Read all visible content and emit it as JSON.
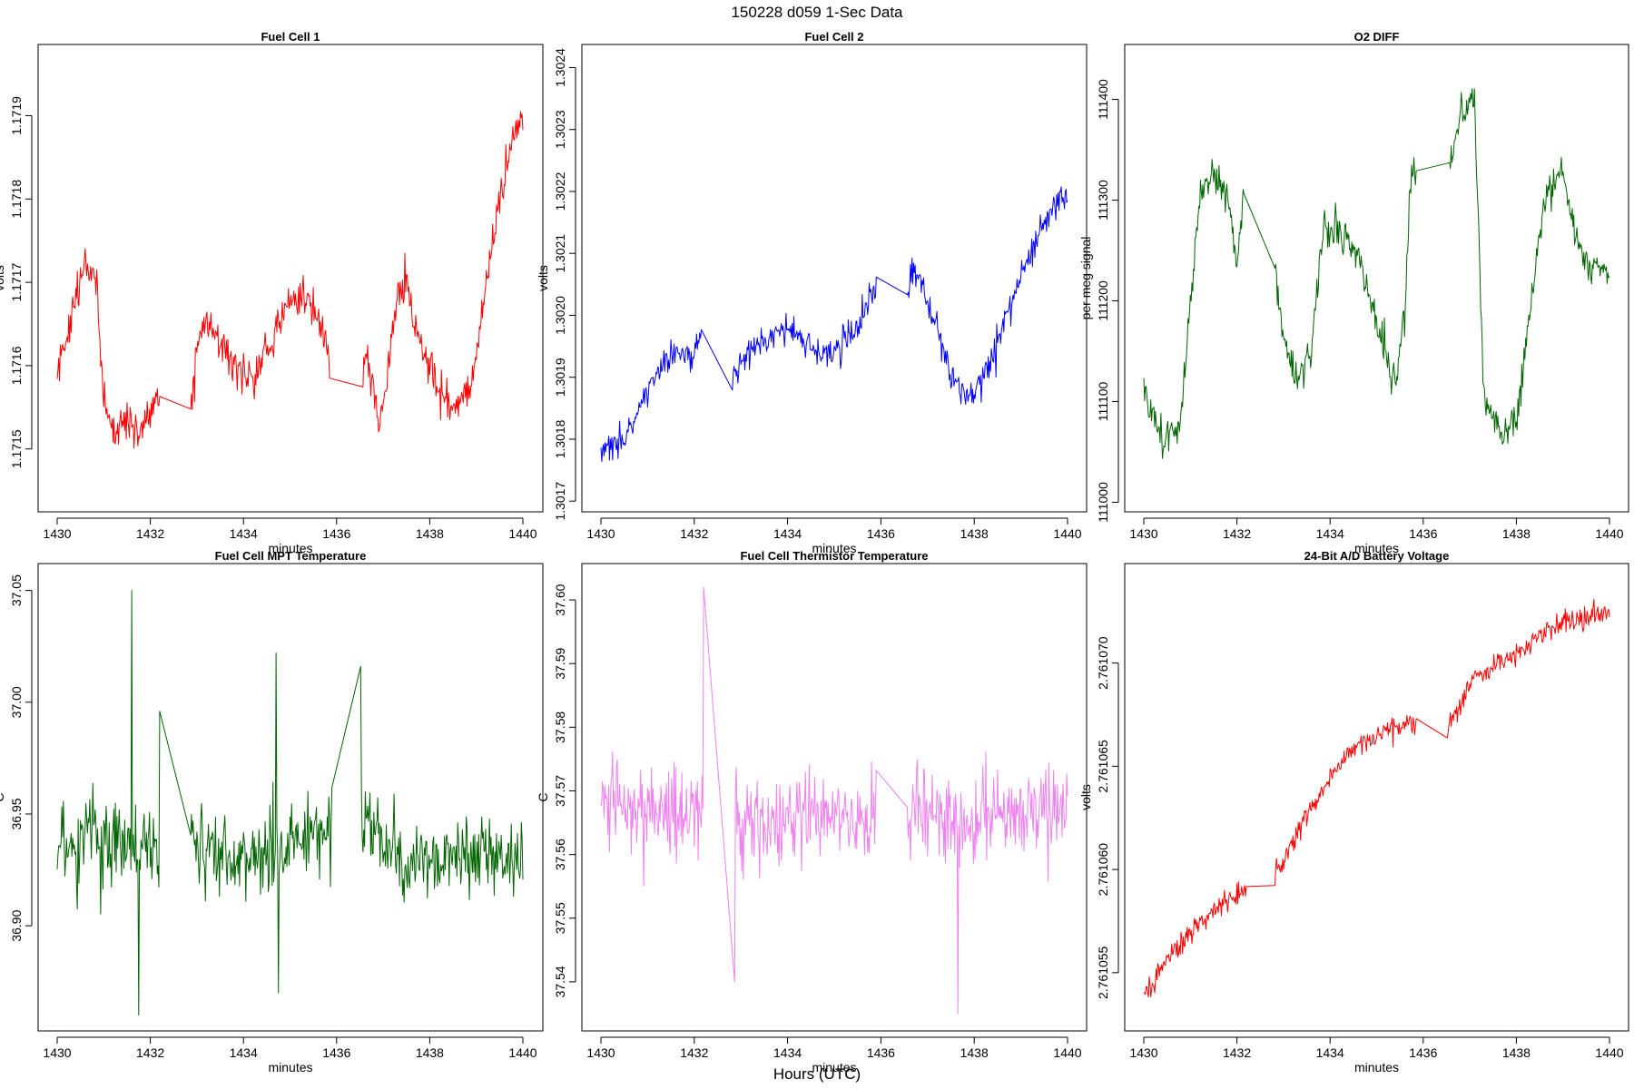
{
  "figure": {
    "title": "150228    d059    1-Sec Data",
    "xlabel": "Hours (UTC)"
  },
  "chart_data": [
    {
      "type": "line",
      "title": "Fuel Cell 1",
      "xlabel": "minutes",
      "ylabel": "volts",
      "color": "#ff0000",
      "xlim": [
        1430,
        1440
      ],
      "ylim": [
        1.17143,
        1.17198
      ],
      "xticks": [
        1430,
        1432,
        1434,
        1436,
        1438,
        1440
      ],
      "yticks": [
        1.1715,
        1.1716,
        1.1717,
        1.1718,
        1.1719
      ],
      "yticklabels": [
        "1.1715",
        "1.1716",
        "1.1717",
        "1.1718",
        "1.1719"
      ],
      "noise": 3.2e-05,
      "gaps": [
        [
          1432.2,
          1432.85
        ],
        [
          1435.85,
          1436.55
        ]
      ],
      "profile": [
        [
          1430,
          1.17159
        ],
        [
          1430.3,
          1.17166
        ],
        [
          1430.6,
          1.17172
        ],
        [
          1430.85,
          1.1717
        ],
        [
          1430.95,
          1.17158
        ],
        [
          1431.2,
          1.17152
        ],
        [
          1431.5,
          1.17154
        ],
        [
          1431.8,
          1.17152
        ],
        [
          1432.1,
          1.17156
        ],
        [
          1432.2,
          1.17155
        ],
        [
          1432.85,
          1.17154
        ],
        [
          1433.0,
          1.17162
        ],
        [
          1433.2,
          1.17166
        ],
        [
          1433.5,
          1.17162
        ],
        [
          1433.8,
          1.1716
        ],
        [
          1434.2,
          1.17158
        ],
        [
          1434.6,
          1.17163
        ],
        [
          1435.0,
          1.17168
        ],
        [
          1435.5,
          1.17168
        ],
        [
          1435.8,
          1.17162
        ],
        [
          1435.85,
          1.1716
        ],
        [
          1436.55,
          1.17159
        ],
        [
          1436.65,
          1.17162
        ],
        [
          1436.9,
          1.17152
        ],
        [
          1437.1,
          1.1716
        ],
        [
          1437.3,
          1.17168
        ],
        [
          1437.5,
          1.1717
        ],
        [
          1437.8,
          1.17163
        ],
        [
          1438.1,
          1.17158
        ],
        [
          1438.5,
          1.17155
        ],
        [
          1438.9,
          1.17157
        ],
        [
          1439.2,
          1.1717
        ],
        [
          1439.5,
          1.1718
        ],
        [
          1439.8,
          1.17188
        ],
        [
          1440.0,
          1.1719
        ]
      ]
    },
    {
      "type": "line",
      "title": "Fuel Cell 2",
      "xlabel": "minutes",
      "ylabel": "volts",
      "color": "#0000ff",
      "xlim": [
        1430,
        1440
      ],
      "ylim": [
        1.30169,
        1.30243
      ],
      "xticks": [
        1430,
        1432,
        1434,
        1436,
        1438,
        1440
      ],
      "yticks": [
        1.3017,
        1.3018,
        1.3019,
        1.302,
        1.3021,
        1.3022,
        1.3023,
        1.3024
      ],
      "yticklabels": [
        "1.3017",
        "1.3018",
        "1.3019",
        "1.3020",
        "1.3021",
        "1.3022",
        "1.3023",
        "1.3024"
      ],
      "noise": 3.6e-05,
      "gaps": [
        [
          1432.15,
          1432.8
        ],
        [
          1435.9,
          1436.55
        ]
      ],
      "profile": [
        [
          1430,
          1.30178
        ],
        [
          1430.5,
          1.3018
        ],
        [
          1431.0,
          1.30188
        ],
        [
          1431.5,
          1.30194
        ],
        [
          1432.0,
          1.30194
        ],
        [
          1432.15,
          1.30197
        ],
        [
          1432.8,
          1.30189
        ],
        [
          1433.0,
          1.30192
        ],
        [
          1433.5,
          1.30196
        ],
        [
          1434.0,
          1.30198
        ],
        [
          1434.5,
          1.30194
        ],
        [
          1435.0,
          1.30194
        ],
        [
          1435.5,
          1.30198
        ],
        [
          1435.9,
          1.30204
        ],
        [
          1436.55,
          1.30203
        ],
        [
          1436.7,
          1.30208
        ],
        [
          1437.0,
          1.30202
        ],
        [
          1437.5,
          1.3019
        ],
        [
          1438.0,
          1.30186
        ],
        [
          1438.3,
          1.30192
        ],
        [
          1438.7,
          1.302
        ],
        [
          1439.2,
          1.3021
        ],
        [
          1439.7,
          1.30218
        ],
        [
          1440.0,
          1.3022
        ]
      ]
    },
    {
      "type": "line",
      "title": "O2 DIFF",
      "xlabel": "minutes",
      "ylabel": "per meg signal",
      "color": "#006400",
      "xlim": [
        1430,
        1440
      ],
      "ylim": [
        110995,
        111450
      ],
      "xticks": [
        1430,
        1432,
        1434,
        1436,
        1438,
        1440
      ],
      "yticks": [
        111000,
        111100,
        111200,
        111300,
        111400
      ],
      "yticklabels": [
        "111000",
        "111100",
        "111200",
        "111300",
        "111400"
      ],
      "noise": 24,
      "gaps": [
        [
          1432.15,
          1432.8
        ],
        [
          1435.85,
          1436.55
        ]
      ],
      "profile": [
        [
          1430,
          111110
        ],
        [
          1430.4,
          111060
        ],
        [
          1430.8,
          111080
        ],
        [
          1431.0,
          111200
        ],
        [
          1431.2,
          111300
        ],
        [
          1431.5,
          111330
        ],
        [
          1431.8,
          111300
        ],
        [
          1432.0,
          111240
        ],
        [
          1432.15,
          111310
        ],
        [
          1432.8,
          111240
        ],
        [
          1433.0,
          111160
        ],
        [
          1433.3,
          111120
        ],
        [
          1433.6,
          111150
        ],
        [
          1433.85,
          111270
        ],
        [
          1434.2,
          111270
        ],
        [
          1434.6,
          111240
        ],
        [
          1435.0,
          111180
        ],
        [
          1435.4,
          111120
        ],
        [
          1435.6,
          111190
        ],
        [
          1435.75,
          111330
        ],
        [
          1435.85,
          111330
        ],
        [
          1436.55,
          111325
        ],
        [
          1436.8,
          111390
        ],
        [
          1437.1,
          111400
        ],
        [
          1437.3,
          111100
        ],
        [
          1437.7,
          111070
        ],
        [
          1438.0,
          111080
        ],
        [
          1438.3,
          111190
        ],
        [
          1438.6,
          111300
        ],
        [
          1439.0,
          111330
        ],
        [
          1439.3,
          111260
        ],
        [
          1439.6,
          111230
        ],
        [
          1440.0,
          111225
        ]
      ]
    },
    {
      "type": "line",
      "title": "Fuel Cell MPT Temperature",
      "xlabel": "minutes",
      "ylabel": "C",
      "color": "#006400",
      "xlim": [
        1430,
        1440
      ],
      "ylim": [
        36.855,
        37.06
      ],
      "xticks": [
        1430,
        1432,
        1434,
        1436,
        1438,
        1440
      ],
      "yticks": [
        36.9,
        36.95,
        37.0,
        37.05
      ],
      "yticklabels": [
        "36.90",
        "36.95",
        "37.00",
        "37.05"
      ],
      "noise": 0.024,
      "gaps": [
        [
          1432.2,
          1432.85
        ],
        [
          1435.9,
          1436.5
        ]
      ],
      "profile": [
        [
          1430,
          36.935
        ],
        [
          1431.0,
          36.94
        ],
        [
          1432.2,
          36.935
        ],
        [
          1432.85,
          36.935
        ],
        [
          1434.0,
          36.93
        ],
        [
          1435.0,
          36.935
        ],
        [
          1435.9,
          36.945
        ],
        [
          1436.5,
          36.945
        ],
        [
          1437.5,
          36.93
        ],
        [
          1438.5,
          36.93
        ],
        [
          1440.0,
          36.93
        ]
      ],
      "spikes": [
        [
          1431.6,
          37.05
        ],
        [
          1431.75,
          36.86
        ],
        [
          1432.2,
          36.996
        ],
        [
          1434.7,
          37.022
        ],
        [
          1434.75,
          36.87
        ],
        [
          1436.5,
          37.016
        ]
      ]
    },
    {
      "type": "line",
      "title": "Fuel Cell Thermistor Temperature",
      "xlabel": "minutes",
      "ylabel": "C",
      "color": "#ee82ee",
      "xlim": [
        1430,
        1440
      ],
      "ylim": [
        37.533,
        37.605
      ],
      "xticks": [
        1430,
        1432,
        1434,
        1436,
        1438,
        1440
      ],
      "yticks": [
        37.54,
        37.55,
        37.56,
        37.57,
        37.58,
        37.59,
        37.6
      ],
      "yticklabels": [
        "37.54",
        "37.55",
        "37.56",
        "37.57",
        "37.58",
        "37.59",
        "37.60"
      ],
      "noise": 0.0095,
      "gaps": [
        [
          1432.2,
          1432.85
        ],
        [
          1435.9,
          1436.55
        ]
      ],
      "profile": [
        [
          1430,
          37.568
        ],
        [
          1432.2,
          37.566
        ],
        [
          1432.85,
          37.566
        ],
        [
          1434.0,
          37.566
        ],
        [
          1435.9,
          37.566
        ],
        [
          1436.55,
          37.566
        ],
        [
          1438.0,
          37.566
        ],
        [
          1440.0,
          37.567
        ]
      ],
      "spikes": [
        [
          1432.85,
          37.54
        ],
        [
          1432.2,
          37.602
        ],
        [
          1437.65,
          37.535
        ]
      ]
    },
    {
      "type": "line",
      "title": "24-Bit A/D Battery Voltage",
      "xlabel": "minutes",
      "ylabel": "volts",
      "color": "#ff0000",
      "xlim": [
        1430,
        1440
      ],
      "ylim": [
        2.7610524,
        2.7610746
      ],
      "xticks": [
        1430,
        1432,
        1434,
        1436,
        1438,
        1440
      ],
      "yticks": [
        2.761055,
        2.76106,
        2.761065,
        2.76107
      ],
      "yticklabels": [
        "2.761055",
        "2.761060",
        "2.761065",
        "2.761070"
      ],
      "noise": 7.5e-07,
      "gaps": [
        [
          1432.2,
          1432.8
        ],
        [
          1435.85,
          1436.5
        ]
      ],
      "profile": [
        [
          1430,
          2.7610538
        ],
        [
          1430.5,
          2.7610556
        ],
        [
          1431.0,
          2.761057
        ],
        [
          1431.5,
          2.761058
        ],
        [
          1432.0,
          2.7610588
        ],
        [
          1432.2,
          2.761059
        ],
        [
          1432.8,
          2.7610595
        ],
        [
          1433.2,
          2.7610615
        ],
        [
          1433.6,
          2.761063
        ],
        [
          1434.0,
          2.7610643
        ],
        [
          1434.5,
          2.7610658
        ],
        [
          1435.0,
          2.7610665
        ],
        [
          1435.5,
          2.7610668
        ],
        [
          1435.85,
          2.7610672
        ],
        [
          1436.5,
          2.7610668
        ],
        [
          1437.0,
          2.761069
        ],
        [
          1437.5,
          2.7610698
        ],
        [
          1438.0,
          2.7610705
        ],
        [
          1438.5,
          2.7610713
        ],
        [
          1439.0,
          2.761072
        ],
        [
          1439.5,
          2.7610722
        ],
        [
          1440.0,
          2.7610725
        ]
      ]
    }
  ]
}
